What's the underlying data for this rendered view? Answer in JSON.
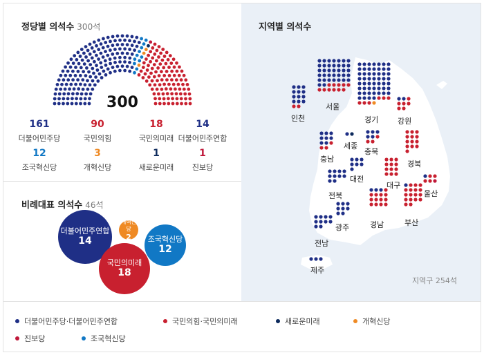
{
  "colors": {
    "dem": "#1f2f86",
    "ppp": "#c8202f",
    "reform": "#ef8a24",
    "rebuild": "#1178c5",
    "newfuture": "#0d2a5c",
    "progressive": "#c0183a",
    "map_land": "#ffffff",
    "map_bg": "#eaf0f7"
  },
  "seats_panel": {
    "title": "정당별 의석수",
    "subtitle": "300석",
    "total": "300"
  },
  "proportional_panel": {
    "title": "비례대표 의석수",
    "subtitle": "46석"
  },
  "map_panel": {
    "title": "지역별 의석수",
    "footnote": "지역구 254석"
  },
  "chart_data": {
    "type": "parliament",
    "seats_by_party": [
      {
        "party": "더불어민주당",
        "seats": 161,
        "color": "#1f2f86"
      },
      {
        "party": "국민의힘",
        "seats": 90,
        "color": "#c8202f"
      },
      {
        "party": "국민의미래",
        "seats": 18,
        "color": "#c8202f"
      },
      {
        "party": "더불어민주연합",
        "seats": 14,
        "color": "#1f2f86"
      },
      {
        "party": "조국혁신당",
        "seats": 12,
        "color": "#1178c5"
      },
      {
        "party": "개혁신당",
        "seats": 3,
        "color": "#ef8a24"
      },
      {
        "party": "새로운미래",
        "seats": 1,
        "color": "#0d2a5c"
      },
      {
        "party": "진보당",
        "seats": 1,
        "color": "#c0183a"
      }
    ],
    "proportional": [
      {
        "party": "더불어민주연합",
        "seats": 14
      },
      {
        "party": "개혁신당",
        "seats": 2
      },
      {
        "party": "조국혁신당",
        "seats": 12
      },
      {
        "party": "국민의미래",
        "seats": 18
      }
    ],
    "regions": [
      {
        "name": "서울",
        "dem": 37,
        "ppp": 11,
        "other": 0
      },
      {
        "name": "인천",
        "dem": 12,
        "ppp": 2,
        "other": 0
      },
      {
        "name": "경기",
        "dem": 53,
        "ppp": 6,
        "other": 1
      },
      {
        "name": "강원",
        "dem": 2,
        "ppp": 6,
        "other": 0
      },
      {
        "name": "충남",
        "dem": 8,
        "ppp": 3,
        "other": 0
      },
      {
        "name": "세종",
        "dem": 1,
        "ppp": 0,
        "other": 1
      },
      {
        "name": "충북",
        "dem": 5,
        "ppp": 3,
        "other": 0
      },
      {
        "name": "경북",
        "dem": 0,
        "ppp": 13,
        "other": 0
      },
      {
        "name": "대전",
        "dem": 7,
        "ppp": 0,
        "other": 0
      },
      {
        "name": "대구",
        "dem": 0,
        "ppp": 12,
        "other": 0
      },
      {
        "name": "전북",
        "dem": 10,
        "ppp": 0,
        "other": 0
      },
      {
        "name": "울산",
        "dem": 1,
        "ppp": 4,
        "other": 1
      },
      {
        "name": "광주",
        "dem": 8,
        "ppp": 0,
        "other": 0
      },
      {
        "name": "경남",
        "dem": 3,
        "ppp": 13,
        "other": 0
      },
      {
        "name": "부산",
        "dem": 1,
        "ppp": 17,
        "other": 0
      },
      {
        "name": "전남",
        "dem": 10,
        "ppp": 0,
        "other": 0
      },
      {
        "name": "제주",
        "dem": 3,
        "ppp": 0,
        "other": 0
      }
    ]
  },
  "party_labels": [
    {
      "value": "161",
      "name": "더불어민주당",
      "color": "#1f2f86"
    },
    {
      "value": "90",
      "name": "국민의힘",
      "color": "#c8202f"
    },
    {
      "value": "18",
      "name": "국민의미래",
      "color": "#c8202f"
    },
    {
      "value": "14",
      "name": "더불어민주연합",
      "color": "#1f2f86"
    },
    {
      "value": "12",
      "name": "조국혁신당",
      "color": "#1178c5"
    },
    {
      "value": "3",
      "name": "개혁신당",
      "color": "#ef8a24"
    },
    {
      "value": "1",
      "name": "새로운미래",
      "color": "#0d2a5c"
    },
    {
      "value": "1",
      "name": "진보당",
      "color": "#c0183a"
    }
  ],
  "bubbles": [
    {
      "name": "더불어민주연합",
      "value": "14",
      "color": "#1f2f86"
    },
    {
      "name": "개혁신당",
      "value": "2",
      "color": "#ef8a24"
    },
    {
      "name": "조국혁신당",
      "value": "12",
      "color": "#1178c5"
    },
    {
      "name": "국민의미래",
      "value": "18",
      "color": "#c8202f"
    }
  ],
  "legend": [
    {
      "label": "더불어민주당·더불어민주연합",
      "color": "#1f2f86"
    },
    {
      "label": "국민의힘·국민의미래",
      "color": "#c8202f"
    },
    {
      "label": "새로운미래",
      "color": "#0d2a5c"
    },
    {
      "label": "개혁신당",
      "color": "#ef8a24"
    },
    {
      "label": "진보당",
      "color": "#c0183a"
    },
    {
      "label": "조국혁신당",
      "color": "#1178c5"
    }
  ]
}
